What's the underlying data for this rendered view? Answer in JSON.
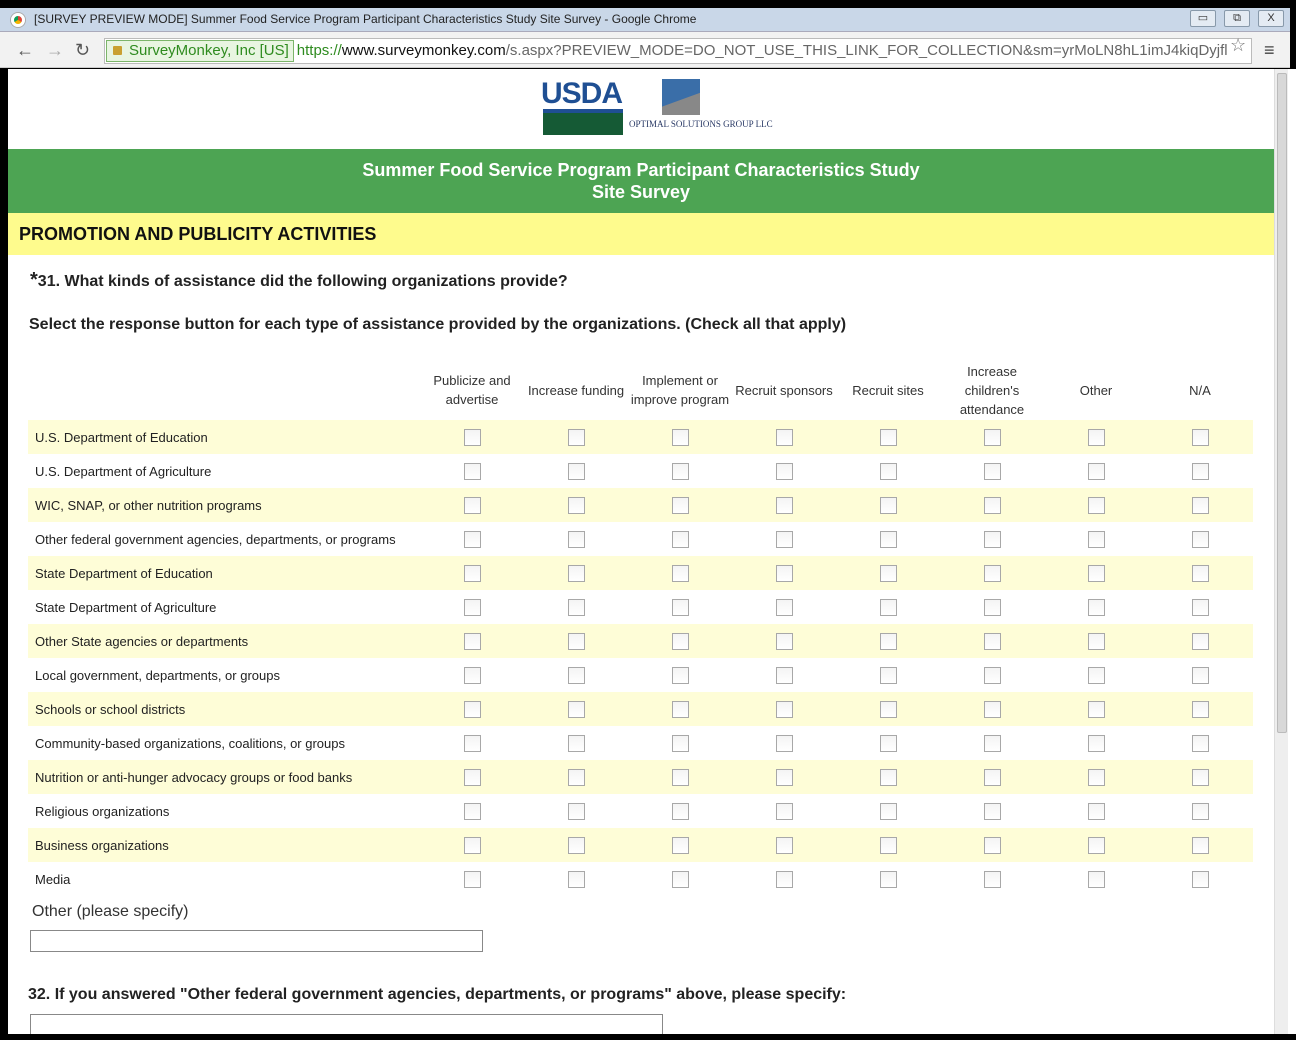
{
  "window": {
    "title": "[SURVEY PREVIEW MODE] Summer Food Service Program Participant Characteristics Study Site Survey - Google Chrome",
    "minimize": "▭",
    "restore": "⧉",
    "close": "X"
  },
  "browser": {
    "ev_label": "SurveyMonkey, Inc [US]",
    "url_scheme": "https://",
    "url_domain": "www.surveymonkey.com",
    "url_path": "/s.aspx?PREVIEW_MODE=DO_NOT_USE_THIS_LINK_FOR_COLLECTION&sm=yrMoLN8hL1imJ4kiqDyjfl",
    "back": "←",
    "forward": "→",
    "reload": "↻",
    "star": "☆",
    "menu": "≡"
  },
  "logos": {
    "usda": "USDA",
    "osg": "OPTIMAL SOLUTIONS GROUP LLC"
  },
  "banner": {
    "line1": "Summer Food Service Program Participant Characteristics Study",
    "line2": "Site Survey"
  },
  "section": "PROMOTION AND PUBLICITY ACTIVITIES",
  "q31": {
    "required": "*",
    "text": "31. What kinds of assistance did the following organizations provide?",
    "instruction": "Select the response button for each type of assistance provided by the organizations. (Check all that apply)"
  },
  "columns": [
    "Publicize and advertise",
    "Increase funding",
    "Implement or improve program",
    "Recruit sponsors",
    "Recruit sites",
    "Increase children's attendance",
    "Other",
    "N/A"
  ],
  "rows": [
    "U.S. Department of Education",
    "U.S. Department of Agriculture",
    "WIC, SNAP, or other nutrition programs",
    "Other federal government agencies, departments, or programs",
    "State Department of Education",
    "State Department of Agriculture",
    "Other State agencies or departments",
    "Local government, departments, or groups",
    "Schools or school districts",
    "Community-based organizations, coalitions, or groups",
    "Nutrition or anti-hunger advocacy groups or food banks",
    "Religious organizations",
    "Business organizations",
    "Media"
  ],
  "other": {
    "label": "Other (please specify)",
    "value": ""
  },
  "q32": {
    "text": "32. If you answered \"Other federal government agencies, departments, or programs\" above, please specify:",
    "value": ""
  },
  "colors": {
    "banner": "#4da453",
    "section": "#fefb8d",
    "row_alt": "#fefdd7"
  }
}
